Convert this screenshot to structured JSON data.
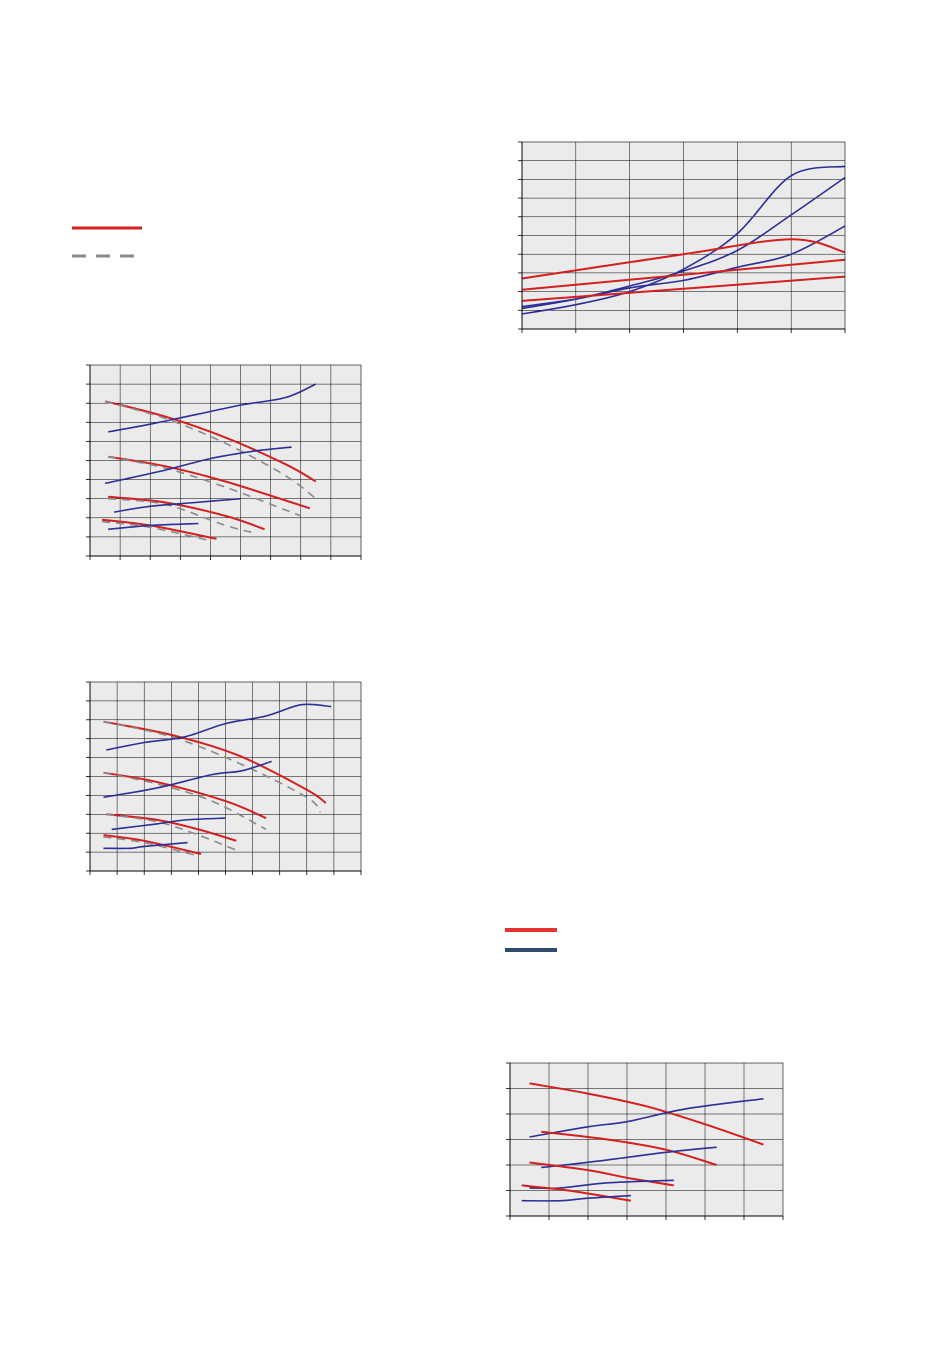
{
  "colors": {
    "red": "#d42020",
    "blue": "#2b2f96",
    "gray": "#8a8a8a",
    "legend_red": "#e3342f",
    "legend_blue": "#2f4b6e",
    "plot_bg": "#ebebeb",
    "grid": "#000000"
  },
  "legends": [
    {
      "items": [
        {
          "style": "solid",
          "color": "red"
        },
        {
          "style": "dashed",
          "color": "gray"
        }
      ]
    },
    {
      "items": [
        {
          "style": "solid",
          "color": "legend_red"
        },
        {
          "style": "solid",
          "color": "legend_blue"
        }
      ]
    }
  ],
  "chart_data": [
    {
      "type": "line",
      "title": "",
      "xlabel": "",
      "ylabel": "",
      "grid": true,
      "xlim": [
        0,
        6
      ],
      "ylim": [
        0,
        10
      ],
      "xticks": 6,
      "yticks": 10,
      "series": [
        {
          "color": "blue",
          "points": [
            [
              0,
              0.8
            ],
            [
              1,
              1.3
            ],
            [
              2,
              2.0
            ],
            [
              3,
              3.2
            ],
            [
              4,
              5.1
            ],
            [
              5,
              8.2
            ],
            [
              6,
              8.7
            ]
          ]
        },
        {
          "color": "blue",
          "points": [
            [
              0,
              1.1
            ],
            [
              1,
              1.6
            ],
            [
              2,
              2.3
            ],
            [
              3,
              3.1
            ],
            [
              4,
              4.2
            ],
            [
              5,
              6.1
            ],
            [
              6,
              8.1
            ]
          ]
        },
        {
          "color": "blue",
          "points": [
            [
              0,
              1.2
            ],
            [
              1,
              1.6
            ],
            [
              2,
              2.2
            ],
            [
              3,
              2.6
            ],
            [
              4,
              3.3
            ],
            [
              5,
              4.0
            ],
            [
              6,
              5.5
            ]
          ]
        },
        {
          "color": "red",
          "points": [
            [
              0,
              2.7
            ],
            [
              3,
              4.0
            ],
            [
              5,
              4.8
            ],
            [
              6,
              4.1
            ]
          ]
        },
        {
          "color": "red",
          "points": [
            [
              0,
              2.1
            ],
            [
              6,
              3.7
            ]
          ]
        },
        {
          "color": "red",
          "points": [
            [
              0,
              1.5
            ],
            [
              6,
              2.8
            ]
          ]
        }
      ]
    },
    {
      "type": "line",
      "title": "",
      "xlabel": "",
      "ylabel": "",
      "grid": true,
      "xlim": [
        0,
        9
      ],
      "ylim": [
        0,
        10
      ],
      "xticks": 9,
      "yticks": 10,
      "series": [
        {
          "color": "red",
          "points": [
            [
              0.5,
              8.1
            ],
            [
              2.5,
              7.3
            ],
            [
              4.5,
              6.2
            ],
            [
              6.5,
              4.8
            ],
            [
              7.5,
              3.9
            ]
          ]
        },
        {
          "color": "gray",
          "dashed": true,
          "points": [
            [
              0.5,
              8.1
            ],
            [
              2.5,
              7.2
            ],
            [
              4.5,
              5.9
            ],
            [
              6.5,
              4.2
            ],
            [
              7.5,
              3.0
            ]
          ]
        },
        {
          "color": "blue",
          "points": [
            [
              0.6,
              6.5
            ],
            [
              2,
              6.9
            ],
            [
              3.5,
              7.4
            ],
            [
              5,
              7.9
            ],
            [
              6.5,
              8.3
            ],
            [
              7.5,
              9.0
            ]
          ]
        },
        {
          "color": "red",
          "points": [
            [
              0.6,
              5.2
            ],
            [
              2.5,
              4.7
            ],
            [
              4.5,
              3.9
            ],
            [
              7.3,
              2.5
            ]
          ]
        },
        {
          "color": "gray",
          "dashed": true,
          "points": [
            [
              0.6,
              5.2
            ],
            [
              2.5,
              4.6
            ],
            [
              4.5,
              3.6
            ],
            [
              7,
              2.1
            ]
          ]
        },
        {
          "color": "blue",
          "points": [
            [
              0.5,
              3.8
            ],
            [
              2.5,
              4.5
            ],
            [
              4,
              5.1
            ],
            [
              5.5,
              5.5
            ],
            [
              6.7,
              5.7
            ]
          ]
        },
        {
          "color": "red",
          "points": [
            [
              0.6,
              3.1
            ],
            [
              2.5,
              2.8
            ],
            [
              4.5,
              2.1
            ],
            [
              5.8,
              1.4
            ]
          ]
        },
        {
          "color": "gray",
          "dashed": true,
          "points": [
            [
              0.6,
              3.0
            ],
            [
              2.5,
              2.7
            ],
            [
              4.5,
              1.6
            ],
            [
              5.5,
              1.2
            ]
          ]
        },
        {
          "color": "blue",
          "points": [
            [
              0.8,
              2.3
            ],
            [
              2,
              2.6
            ],
            [
              3.5,
              2.8
            ],
            [
              5,
              3.0
            ]
          ]
        },
        {
          "color": "red",
          "points": [
            [
              0.4,
              1.9
            ],
            [
              2,
              1.6
            ],
            [
              4.2,
              0.9
            ]
          ]
        },
        {
          "color": "gray",
          "dashed": true,
          "points": [
            [
              0.4,
              1.8
            ],
            [
              2,
              1.5
            ],
            [
              4,
              0.8
            ]
          ]
        },
        {
          "color": "blue",
          "points": [
            [
              0.6,
              1.4
            ],
            [
              2,
              1.6
            ],
            [
              3.6,
              1.7
            ]
          ]
        }
      ]
    },
    {
      "type": "line",
      "title": "",
      "xlabel": "",
      "ylabel": "",
      "grid": true,
      "xlim": [
        0,
        10
      ],
      "ylim": [
        0,
        10
      ],
      "xticks": 10,
      "yticks": 10,
      "series": [
        {
          "color": "red",
          "points": [
            [
              0.5,
              7.9
            ],
            [
              3,
              7.2
            ],
            [
              5.5,
              6.1
            ],
            [
              8,
              4.3
            ],
            [
              8.7,
              3.6
            ]
          ]
        },
        {
          "color": "gray",
          "dashed": true,
          "points": [
            [
              0.5,
              7.9
            ],
            [
              3,
              7.1
            ],
            [
              5.5,
              5.7
            ],
            [
              8,
              3.9
            ],
            [
              8.5,
              3.1
            ]
          ]
        },
        {
          "color": "blue",
          "points": [
            [
              0.6,
              6.4
            ],
            [
              2,
              6.8
            ],
            [
              3.5,
              7.1
            ],
            [
              5,
              7.8
            ],
            [
              6.5,
              8.2
            ],
            [
              7.8,
              8.8
            ],
            [
              8.9,
              8.7
            ]
          ]
        },
        {
          "color": "red",
          "points": [
            [
              0.5,
              5.2
            ],
            [
              2.5,
              4.7
            ],
            [
              5,
              3.7
            ],
            [
              6.5,
              2.8
            ]
          ]
        },
        {
          "color": "gray",
          "dashed": true,
          "points": [
            [
              0.5,
              5.2
            ],
            [
              2.5,
              4.6
            ],
            [
              4.5,
              3.7
            ],
            [
              6.5,
              2.2
            ]
          ]
        },
        {
          "color": "blue",
          "points": [
            [
              0.5,
              3.9
            ],
            [
              2.5,
              4.4
            ],
            [
              4.5,
              5.1
            ],
            [
              5.6,
              5.3
            ],
            [
              6.7,
              5.8
            ]
          ]
        },
        {
          "color": "red",
          "points": [
            [
              0.6,
              3.0
            ],
            [
              2.5,
              2.7
            ],
            [
              4,
              2.2
            ],
            [
              5.4,
              1.6
            ]
          ]
        },
        {
          "color": "gray",
          "dashed": true,
          "points": [
            [
              0.6,
              3.0
            ],
            [
              2.5,
              2.6
            ],
            [
              4,
              1.9
            ],
            [
              5.4,
              1.1
            ]
          ]
        },
        {
          "color": "blue",
          "points": [
            [
              0.8,
              2.2
            ],
            [
              2.5,
              2.5
            ],
            [
              3.5,
              2.7
            ],
            [
              5,
              2.8
            ]
          ]
        },
        {
          "color": "red",
          "points": [
            [
              0.5,
              1.9
            ],
            [
              2,
              1.6
            ],
            [
              4.1,
              0.9
            ]
          ]
        },
        {
          "color": "gray",
          "dashed": true,
          "points": [
            [
              0.5,
              1.8
            ],
            [
              2,
              1.5
            ],
            [
              4,
              0.8
            ]
          ]
        },
        {
          "color": "blue",
          "points": [
            [
              0.5,
              1.2
            ],
            [
              1.5,
              1.2
            ],
            [
              2,
              1.3
            ],
            [
              3.6,
              1.5
            ]
          ]
        }
      ]
    },
    {
      "type": "line",
      "title": "",
      "xlabel": "",
      "ylabel": "",
      "grid": true,
      "xlim": [
        0,
        7
      ],
      "ylim": [
        0,
        6
      ],
      "xticks": 7,
      "yticks": 6,
      "series": [
        {
          "color": "red",
          "points": [
            [
              0.5,
              5.2
            ],
            [
              2,
              4.8
            ],
            [
              3.5,
              4.3
            ],
            [
              5,
              3.6
            ],
            [
              6.5,
              2.8
            ]
          ]
        },
        {
          "color": "blue",
          "points": [
            [
              0.5,
              3.1
            ],
            [
              2,
              3.5
            ],
            [
              3,
              3.7
            ],
            [
              4.5,
              4.2
            ],
            [
              6.5,
              4.6
            ]
          ]
        },
        {
          "color": "red",
          "points": [
            [
              0.8,
              3.3
            ],
            [
              2.5,
              3.0
            ],
            [
              4,
              2.6
            ],
            [
              5.3,
              2.0
            ]
          ]
        },
        {
          "color": "blue",
          "points": [
            [
              0.8,
              1.9
            ],
            [
              2.5,
              2.2
            ],
            [
              4,
              2.5
            ],
            [
              5.3,
              2.7
            ]
          ]
        },
        {
          "color": "red",
          "points": [
            [
              0.5,
              2.1
            ],
            [
              2,
              1.8
            ],
            [
              3,
              1.5
            ],
            [
              4.2,
              1.2
            ]
          ]
        },
        {
          "color": "blue",
          "points": [
            [
              0.5,
              1.1
            ],
            [
              1.3,
              1.1
            ],
            [
              2.5,
              1.3
            ],
            [
              4.2,
              1.4
            ]
          ]
        },
        {
          "color": "red",
          "points": [
            [
              0.3,
              1.2
            ],
            [
              1.5,
              1.0
            ],
            [
              3.1,
              0.6
            ]
          ]
        },
        {
          "color": "blue",
          "points": [
            [
              0.3,
              0.6
            ],
            [
              1.3,
              0.6
            ],
            [
              2,
              0.7
            ],
            [
              3.1,
              0.8
            ]
          ]
        }
      ]
    }
  ]
}
